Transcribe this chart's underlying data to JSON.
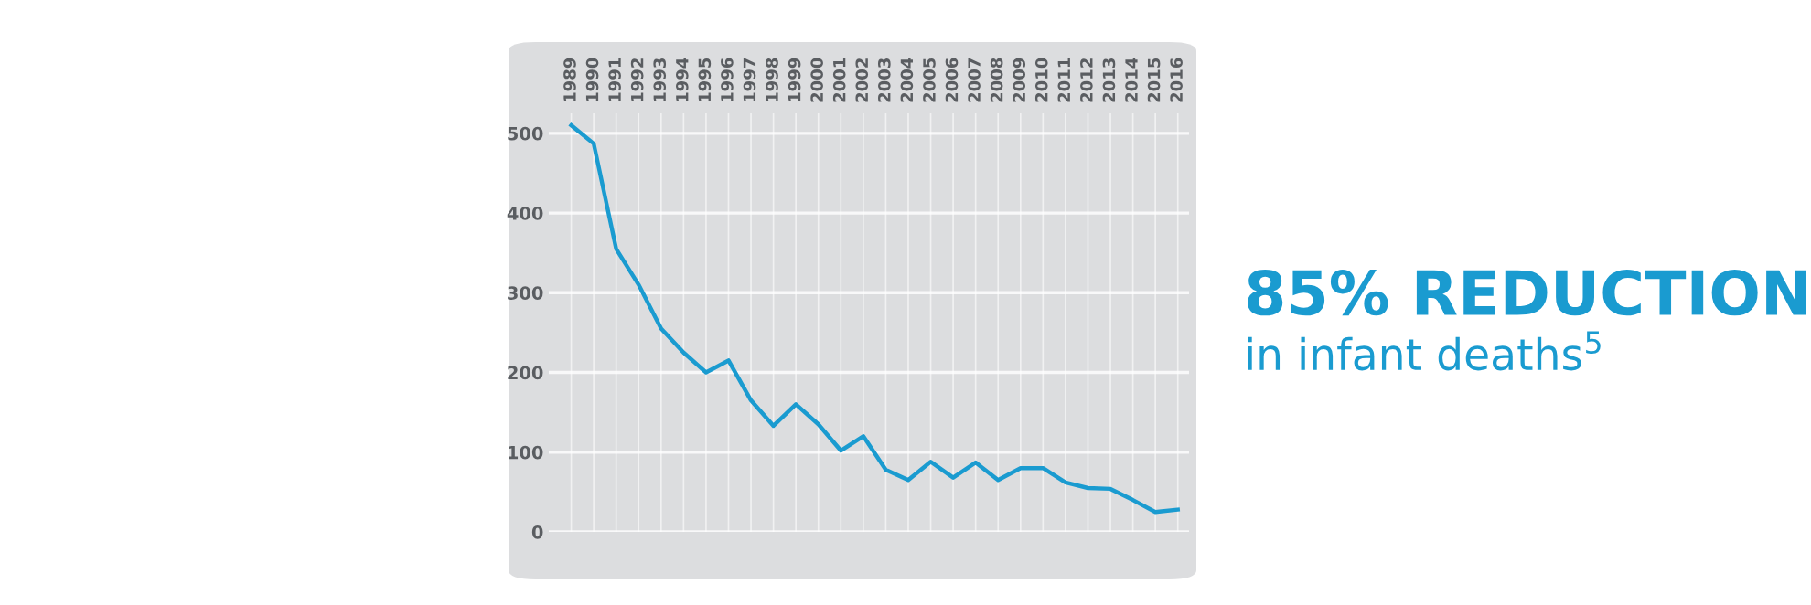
{
  "chart_data": {
    "type": "line",
    "categories": [
      "1989",
      "1990",
      "1991",
      "1992",
      "1993",
      "1994",
      "1995",
      "1996",
      "1997",
      "1998",
      "1999",
      "2000",
      "2001",
      "2002",
      "2003",
      "2004",
      "2005",
      "2006",
      "2007",
      "2008",
      "2009",
      "2010",
      "2011",
      "2012",
      "2013",
      "2014",
      "2015",
      "2016"
    ],
    "series": [
      {
        "color": "#1a9bd0",
        "values": [
          510,
          487,
          355,
          310,
          255,
          225,
          200,
          215,
          165,
          133,
          160,
          135,
          102,
          120,
          78,
          65,
          88,
          68,
          87,
          65,
          80,
          80,
          62,
          55,
          54,
          40,
          25,
          28
        ]
      }
    ],
    "ylim": [
      0,
      525
    ],
    "yticks": [
      0,
      100,
      200,
      300,
      400,
      500
    ],
    "grid": true,
    "marker": "none",
    "line_style": "solid",
    "annotations": [
      "85% REDUCTION",
      "in infant deaths$^{5}$"
    ]
  }
}
